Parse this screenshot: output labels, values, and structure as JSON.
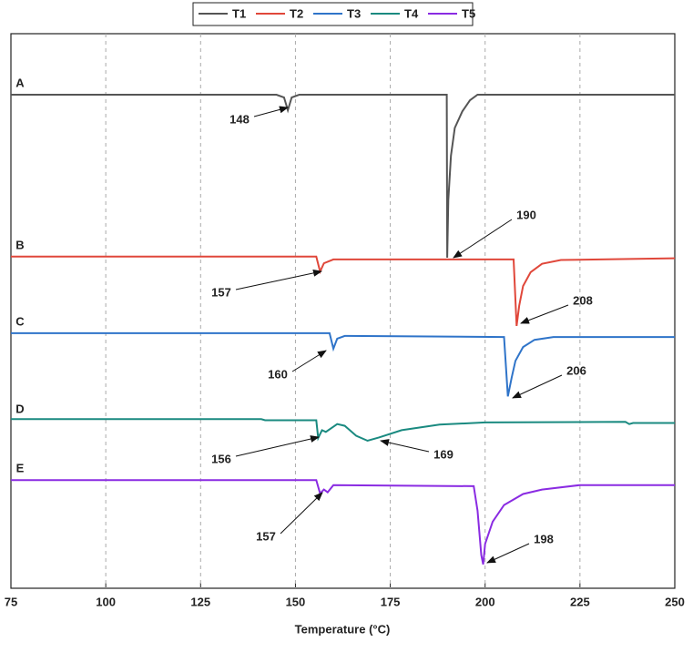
{
  "chart_data": {
    "type": "line",
    "xlabel": "Temperature (°C)",
    "xlim": [
      75,
      250
    ],
    "xticks": [
      75,
      100,
      125,
      150,
      175,
      200,
      225,
      250
    ],
    "ylim": [
      0,
      100
    ],
    "grid": true,
    "legend": "top",
    "series": [
      {
        "name": "T1",
        "color": "#555555",
        "label": "A",
        "x": [
          75,
          145,
          147,
          148,
          149,
          151,
          189.9,
          190,
          190.3,
          191,
          192,
          194,
          196,
          198,
          250
        ],
        "values": [
          89,
          89,
          88.5,
          86.2,
          88.5,
          89,
          89,
          59.6,
          70,
          78,
          83,
          86,
          88,
          89,
          89
        ]
      },
      {
        "name": "T2",
        "color": "#e0473a",
        "label": "B",
        "x": [
          75,
          155.5,
          156.5,
          157.5,
          160,
          207.5,
          208.3,
          209,
          210,
          212,
          215,
          220,
          250
        ],
        "values": [
          59.8,
          59.8,
          57.1,
          58.6,
          59.3,
          59.3,
          47.3,
          51,
          54.5,
          57,
          58.5,
          59.2,
          59.5
        ]
      },
      {
        "name": "T3",
        "color": "#2f74c9",
        "label": "C",
        "x": [
          75,
          159,
          160,
          161,
          163,
          205,
          206,
          207,
          208,
          210,
          213,
          218,
          250
        ],
        "values": [
          46,
          46,
          43.2,
          45,
          45.5,
          45.3,
          34.6,
          38,
          41,
          43.5,
          44.8,
          45.3,
          45.3
        ]
      },
      {
        "name": "T4",
        "color": "#1a8a80",
        "label": "D",
        "x": [
          75,
          141,
          142,
          155.5,
          156,
          157,
          158,
          161,
          163,
          166,
          169,
          172,
          178,
          188,
          200,
          237,
          238,
          239,
          250
        ],
        "values": [
          30.5,
          30.5,
          30.3,
          30.3,
          27.1,
          28.5,
          28.2,
          29.6,
          29.3,
          27.5,
          26.6,
          27.2,
          28.5,
          29.5,
          29.9,
          30,
          29.6,
          29.8,
          29.8
        ]
      },
      {
        "name": "T5",
        "color": "#8a2be2",
        "label": "E",
        "x": [
          75,
          155.5,
          156.5,
          157.5,
          158.5,
          160,
          197,
          198,
          199,
          199.5,
          200,
          202,
          205,
          210,
          215,
          225,
          250
        ],
        "values": [
          19.5,
          19.5,
          17.1,
          17.8,
          17.3,
          18.6,
          18.4,
          14,
          6,
          4.3,
          8,
          12,
          15,
          17,
          17.8,
          18.6,
          18.6
        ]
      }
    ],
    "annotations": [
      "148",
      "190",
      "157",
      "208",
      "160",
      "206",
      "156",
      "169",
      "157",
      "198"
    ]
  }
}
